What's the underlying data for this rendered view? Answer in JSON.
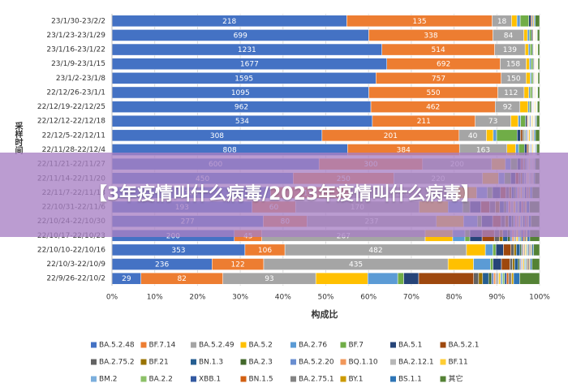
{
  "chart_data": {
    "type": "bar",
    "orientation": "horizontal",
    "stacking": "percent",
    "x_label": "构成比",
    "y_label": "采样时间",
    "banner": "【3年疫情叫什么病毒/2023年疫情叫什么病毒】",
    "categories": [
      "23/1/30-23/2/2",
      "23/1/23-23/1/29",
      "23/1/16-23/1/22",
      "23/1/9-23/1/15",
      "23/1/2-23/1/8",
      "22/12/26-23/1/1",
      "22/12/19-22/12/25",
      "22/12/12-22/12/18",
      "22/12/5-22/12/11",
      "22/11/28-22/12/4",
      "22/11/21-22/11/27",
      "22/11/14-22/11/20",
      "22/11/7-22/11/13",
      "22/10/31-22/11/6",
      "22/10/24-22/10/30",
      "22/10/17-22/10/23",
      "22/10/10-22/10/16",
      "22/10/3-22/10/9",
      "22/9/26-22/10/2"
    ],
    "xlim": [
      0,
      100
    ],
    "xticks": [
      {
        "value": 0,
        "label": "0%"
      },
      {
        "value": 10,
        "label": "10%"
      },
      {
        "value": 20,
        "label": "20%"
      },
      {
        "value": 30,
        "label": "30%"
      },
      {
        "value": 40,
        "label": "40%"
      },
      {
        "value": 50,
        "label": "50%"
      },
      {
        "value": 60,
        "label": "60%"
      },
      {
        "value": 70,
        "label": "70%"
      },
      {
        "value": 80,
        "label": "80%"
      },
      {
        "value": 90,
        "label": "90%"
      },
      {
        "value": 100,
        "label": "100%"
      }
    ],
    "grid": true,
    "series": [
      {
        "name": "BA.5.2.48",
        "color": "#4472c4",
        "show_labels": true,
        "values": [
          218,
          699,
          1231,
          1677,
          1595,
          1095,
          962,
          534,
          308,
          808,
          600,
          450,
          300,
          193,
          277,
          200,
          353,
          236,
          29
        ]
      },
      {
        "name": "BF.7.14",
        "color": "#ed7d31",
        "show_labels": true,
        "values": [
          135,
          338,
          514,
          692,
          757,
          550,
          462,
          211,
          201,
          384,
          300,
          250,
          150,
          60,
          80,
          45,
          106,
          122,
          82
        ]
      },
      {
        "name": "BA.5.2.49",
        "color": "#a5a5a5",
        "show_labels": true,
        "values": [
          18,
          84,
          139,
          158,
          150,
          112,
          92,
          73,
          40,
          163,
          200,
          220,
          200,
          170,
          237,
          267,
          482,
          435,
          93
        ]
      },
      {
        "name": "BA.5.2",
        "color": "#ffc000",
        "values": [
          5,
          10,
          15,
          20,
          25,
          20,
          30,
          15,
          10,
          30,
          40,
          40,
          40,
          40,
          50,
          45,
          50,
          60,
          52
        ]
      },
      {
        "name": "BA.2.76",
        "color": "#5b9bd5",
        "values": [
          3,
          5,
          8,
          10,
          8,
          6,
          5,
          5,
          5,
          10,
          15,
          15,
          20,
          20,
          25,
          20,
          20,
          40,
          30
        ]
      },
      {
        "name": "BF.7",
        "color": "#70ad47",
        "values": [
          8,
          6,
          10,
          12,
          10,
          8,
          6,
          10,
          30,
          20,
          20,
          15,
          10,
          10,
          8,
          8,
          8,
          6,
          6
        ]
      },
      {
        "name": "BA.5.1",
        "color": "#264478",
        "values": [
          2,
          3,
          4,
          5,
          4,
          3,
          3,
          3,
          5,
          8,
          10,
          12,
          15,
          15,
          20,
          20,
          20,
          20,
          15
        ]
      },
      {
        "name": "BA.5.2.1",
        "color": "#9e480e",
        "values": [
          1,
          2,
          2,
          3,
          3,
          2,
          2,
          2,
          3,
          5,
          5,
          8,
          10,
          12,
          15,
          20,
          20,
          20,
          55
        ]
      },
      {
        "name": "BA.2.75.2",
        "color": "#636363",
        "values": [
          0,
          1,
          1,
          2,
          2,
          1,
          1,
          1,
          2,
          3,
          4,
          5,
          6,
          8,
          8,
          8,
          8,
          6,
          5
        ]
      },
      {
        "name": "BF.21",
        "color": "#997300",
        "values": [
          0,
          1,
          1,
          2,
          2,
          1,
          1,
          1,
          1,
          2,
          3,
          4,
          5,
          6,
          6,
          6,
          6,
          5,
          4
        ]
      },
      {
        "name": "BN.1.3",
        "color": "#255e91",
        "values": [
          0,
          1,
          1,
          1,
          1,
          1,
          1,
          1,
          1,
          2,
          3,
          4,
          5,
          6,
          6,
          8,
          10,
          8,
          6
        ]
      },
      {
        "name": "BA.2.3",
        "color": "#43682b",
        "values": [
          0,
          0,
          1,
          1,
          1,
          1,
          1,
          1,
          1,
          1,
          2,
          2,
          3,
          3,
          3,
          4,
          4,
          4,
          3
        ]
      },
      {
        "name": "BA.5.2.20",
        "color": "#698ed0",
        "values": [
          1,
          1,
          2,
          2,
          2,
          2,
          2,
          2,
          2,
          3,
          3,
          3,
          3,
          3,
          3,
          3,
          3,
          3,
          2
        ]
      },
      {
        "name": "BQ.1.10",
        "color": "#f1975a",
        "values": [
          0,
          1,
          1,
          1,
          1,
          1,
          1,
          1,
          1,
          2,
          2,
          2,
          3,
          3,
          3,
          3,
          3,
          2,
          2
        ]
      },
      {
        "name": "BA.2.12.1",
        "color": "#b7b7b7",
        "values": [
          0,
          0,
          1,
          1,
          1,
          1,
          1,
          1,
          1,
          1,
          2,
          2,
          3,
          4,
          4,
          4,
          4,
          3,
          3
        ]
      },
      {
        "name": "BF.11",
        "color": "#ffcd33",
        "values": [
          1,
          2,
          3,
          4,
          4,
          3,
          3,
          2,
          2,
          3,
          3,
          3,
          3,
          3,
          3,
          3,
          3,
          3,
          2
        ]
      },
      {
        "name": "BM.2",
        "color": "#7cafdd",
        "values": [
          0,
          1,
          1,
          1,
          1,
          1,
          1,
          1,
          1,
          2,
          2,
          2,
          3,
          3,
          3,
          3,
          3,
          3,
          2
        ]
      },
      {
        "name": "BA.2.2",
        "color": "#8cc168",
        "values": [
          0,
          0,
          1,
          1,
          1,
          1,
          1,
          1,
          1,
          1,
          2,
          2,
          2,
          2,
          2,
          2,
          2,
          2,
          2
        ]
      },
      {
        "name": "XBB.1",
        "color": "#335aa1",
        "values": [
          0,
          1,
          1,
          1,
          1,
          1,
          1,
          1,
          1,
          2,
          2,
          2,
          3,
          3,
          3,
          3,
          3,
          2,
          2
        ]
      },
      {
        "name": "BN.1.5",
        "color": "#d26012",
        "values": [
          0,
          0,
          1,
          1,
          1,
          1,
          1,
          1,
          1,
          1,
          2,
          2,
          2,
          2,
          2,
          2,
          2,
          2,
          2
        ]
      },
      {
        "name": "BA.2.75.1",
        "color": "#848484",
        "values": [
          0,
          1,
          1,
          1,
          1,
          1,
          1,
          1,
          1,
          2,
          2,
          2,
          3,
          3,
          3,
          3,
          3,
          3,
          3
        ]
      },
      {
        "name": "BY.1",
        "color": "#cc9a00",
        "values": [
          0,
          0,
          1,
          1,
          1,
          1,
          1,
          1,
          1,
          1,
          2,
          2,
          2,
          2,
          2,
          2,
          2,
          2,
          2
        ]
      },
      {
        "name": "BS.1.1",
        "color": "#2e75b6",
        "values": [
          1,
          1,
          2,
          2,
          2,
          2,
          2,
          2,
          2,
          3,
          3,
          3,
          4,
          4,
          4,
          4,
          4,
          4,
          6
        ]
      },
      {
        "name": "其它",
        "color": "#548235",
        "values": [
          4,
          6,
          8,
          10,
          10,
          8,
          8,
          6,
          6,
          10,
          12,
          12,
          14,
          14,
          16,
          16,
          16,
          18,
          20
        ]
      }
    ]
  }
}
